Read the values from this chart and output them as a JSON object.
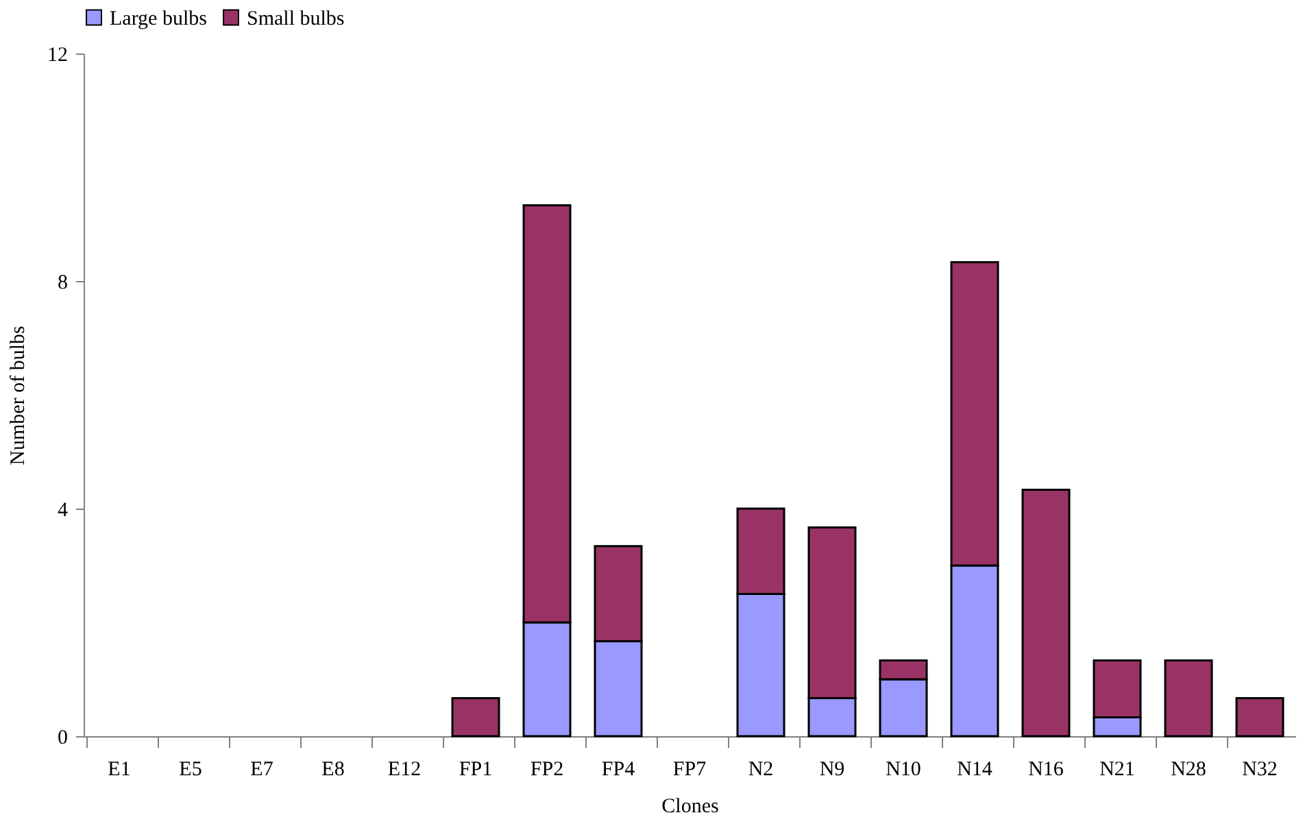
{
  "chart_data": {
    "type": "bar",
    "stacked": true,
    "xlabel": "Clones",
    "ylabel": "Number of bulbs",
    "categories": [
      "E1",
      "E5",
      "E7",
      "E8",
      "E12",
      "FP1",
      "FP2",
      "FP4",
      "FP7",
      "N2",
      "N9",
      "N10",
      "N14",
      "N16",
      "N21",
      "N28",
      "N32"
    ],
    "series": [
      {
        "name": "Large bulbs",
        "color": "#9999ff",
        "values": [
          0,
          0,
          0,
          0,
          0,
          0,
          2.0,
          1.67,
          0,
          2.5,
          0.67,
          1.0,
          3.0,
          0,
          0.33,
          0,
          0
        ]
      },
      {
        "name": "Small bulbs",
        "color": "#993366",
        "values": [
          0,
          0,
          0,
          0,
          0,
          0.67,
          7.33,
          1.67,
          0,
          1.5,
          3.0,
          0.33,
          5.33,
          4.33,
          1.0,
          1.33,
          0.67
        ]
      }
    ],
    "ylim": [
      0,
      12
    ],
    "yticks": [
      0,
      4,
      8,
      12
    ],
    "grid": false,
    "legend": "top"
  }
}
